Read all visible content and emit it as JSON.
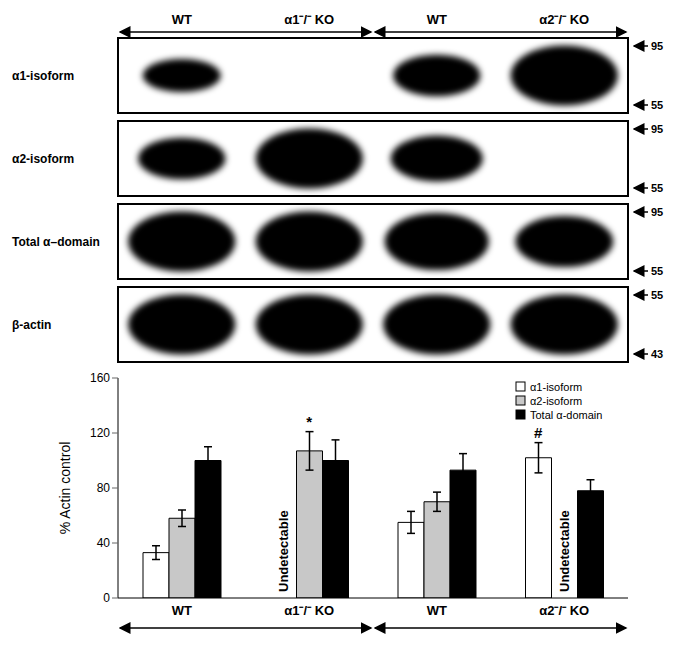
{
  "blot": {
    "panels": [
      {
        "label": "α1-isoform",
        "markers": [
          95,
          55
        ]
      },
      {
        "label": "α2-isoform",
        "markers": [
          95,
          55
        ]
      },
      {
        "label": "Total α–domain",
        "markers": [
          95,
          55
        ]
      },
      {
        "label": "β-actin",
        "markers": [
          55,
          43
        ]
      }
    ]
  },
  "chart_data": {
    "type": "bar",
    "categories": [
      "WT",
      "α1⁻/⁻ KO",
      "WT",
      "α2⁻/⁻ KO"
    ],
    "ylabel": "% Actin control",
    "ylim": [
      0,
      160
    ],
    "yticks": [
      0,
      40,
      80,
      120,
      160
    ],
    "legend": "top-right",
    "series": [
      {
        "name": "α1-isoform",
        "color": "#ffffff",
        "values": [
          33,
          null,
          55,
          102
        ],
        "errors": [
          5,
          null,
          8,
          11
        ]
      },
      {
        "name": "α2-isoform",
        "color": "#c8c8c8",
        "values": [
          58,
          107,
          70,
          null
        ],
        "errors": [
          6,
          14,
          7,
          null
        ]
      },
      {
        "name": "Total α-domain",
        "color": "#000000",
        "values": [
          100,
          100,
          93,
          78
        ],
        "errors": [
          10,
          15,
          12,
          8
        ]
      }
    ],
    "annotations": [
      {
        "text": "*",
        "category": 1,
        "series": "α2-isoform"
      },
      {
        "text": "#",
        "category": 3,
        "series": "α1-isoform"
      },
      {
        "text": "Undetectable",
        "category": 1,
        "series": "α1-isoform"
      },
      {
        "text": "Undetectable",
        "category": 3,
        "series": "α2-isoform"
      }
    ]
  }
}
